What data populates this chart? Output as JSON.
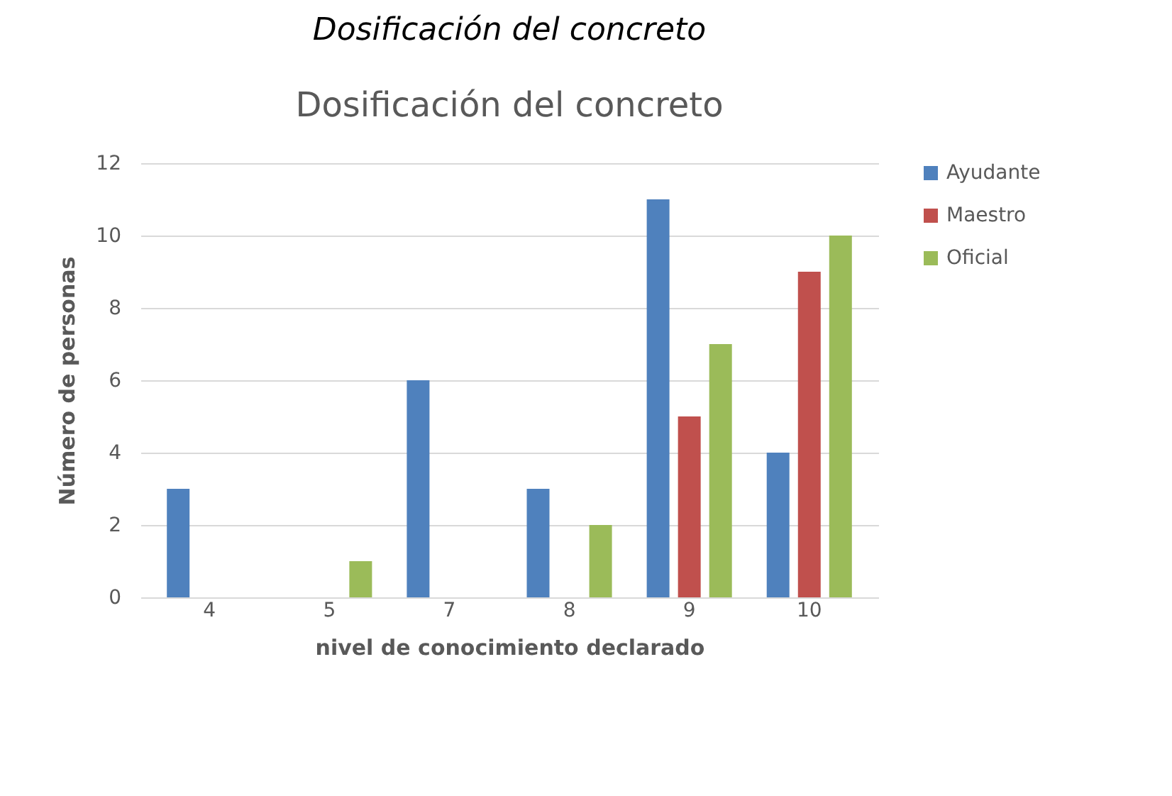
{
  "chart_data": {
    "type": "bar",
    "title": "Dosificación del concreto",
    "subtitle": "Dosificación del concreto",
    "xlabel": "nivel de conocimiento declarado",
    "ylabel": "Número de personas",
    "categories": [
      "4",
      "5",
      "7",
      "8",
      "9",
      "10"
    ],
    "series": [
      {
        "name": "Ayudante",
        "color": "#4f81bd",
        "values": [
          3,
          0,
          6,
          3,
          11,
          4
        ]
      },
      {
        "name": "Maestro",
        "color": "#c0504d",
        "values": [
          0,
          0,
          0,
          0,
          5,
          9
        ]
      },
      {
        "name": "Oficial",
        "color": "#9bbb59",
        "values": [
          0,
          1,
          0,
          2,
          7,
          10
        ]
      }
    ],
    "ylim": [
      0,
      12
    ],
    "yticks": [
      0,
      2,
      4,
      6,
      8,
      10,
      12
    ],
    "grid": "y",
    "legend": "right"
  }
}
